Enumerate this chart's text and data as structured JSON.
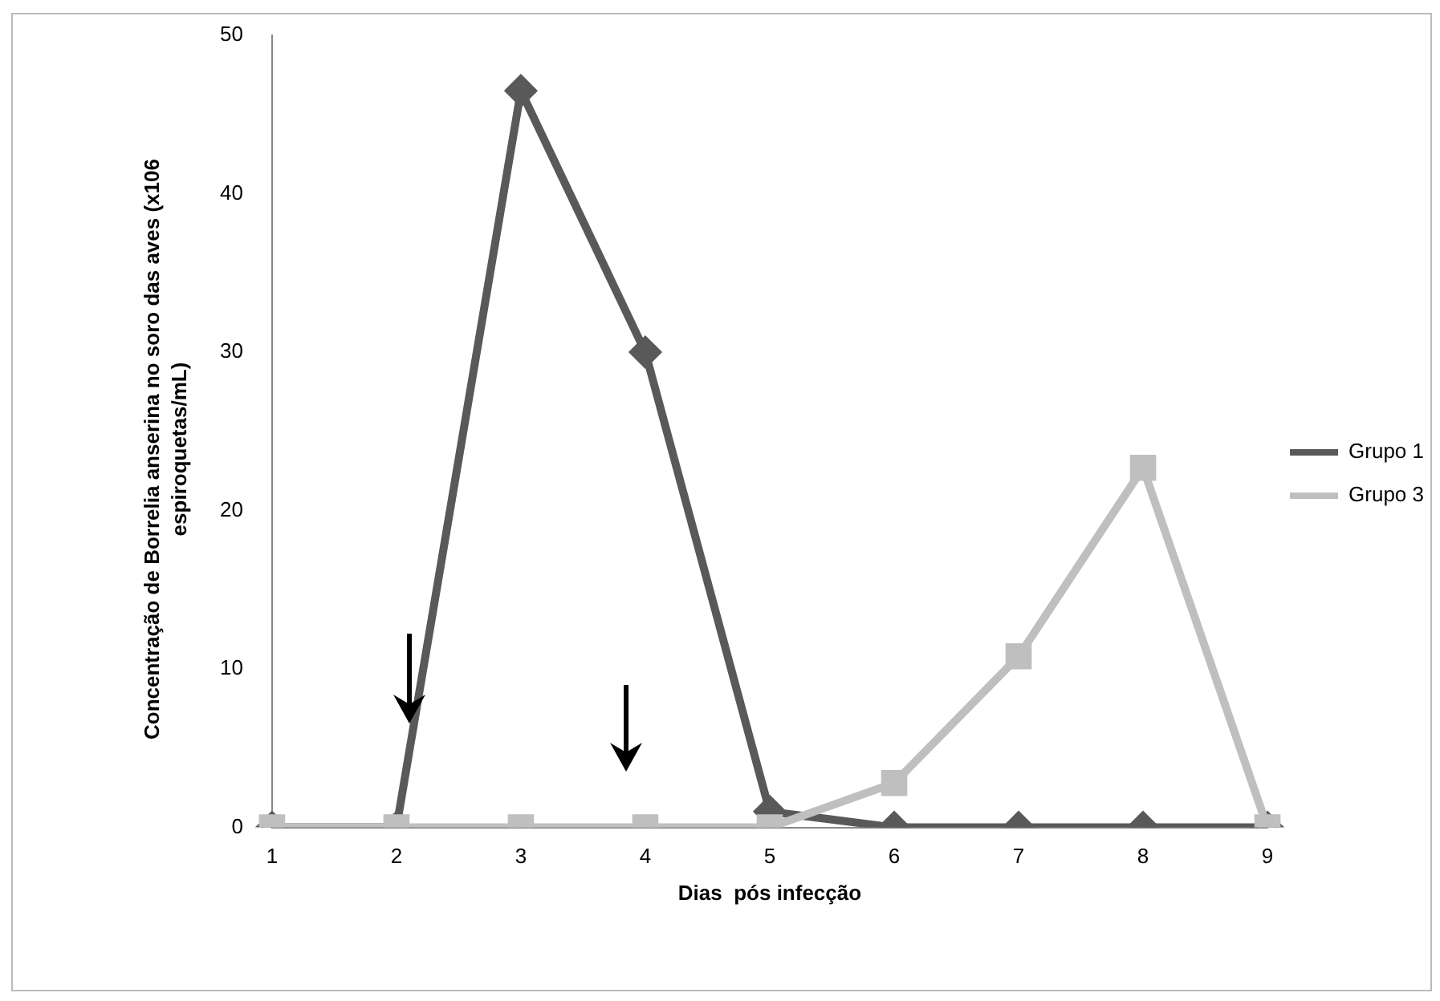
{
  "chart_data": {
    "type": "line",
    "xlabel": "Dias  pós infecção",
    "ylabel": "Concentração de Borrelia anserina no soro das aves (x106 espiroquetas/mL)",
    "categories": [
      "1",
      "2",
      "3",
      "4",
      "5",
      "6",
      "7",
      "8",
      "9"
    ],
    "series": [
      {
        "name": "Grupo 1",
        "color": "#595959",
        "marker": "diamond",
        "values": [
          0,
          0,
          46.5,
          30,
          1,
          0,
          0,
          0,
          0
        ]
      },
      {
        "name": "Grupo 3",
        "color": "#bfbfbf",
        "marker": "square",
        "values": [
          0,
          0,
          0,
          0,
          0,
          2.8,
          10.8,
          22.7,
          0
        ]
      }
    ],
    "ylim": [
      0,
      50
    ],
    "yticks": [
      0,
      10,
      20,
      30,
      40,
      50
    ],
    "grid": false,
    "legend": "right",
    "line_style": "solid"
  }
}
